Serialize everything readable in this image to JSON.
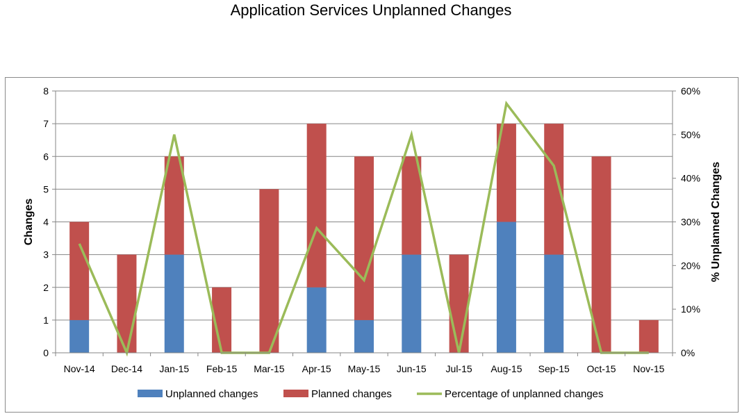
{
  "page": {
    "title": "Application Services Unplanned Changes"
  },
  "chart_data": {
    "type": "bar",
    "stacked": true,
    "title": "Application Services Unplanned Changes",
    "categories": [
      "Nov-14",
      "Dec-14",
      "Jan-15",
      "Feb-15",
      "Mar-15",
      "Apr-15",
      "May-15",
      "Jun-15",
      "Jul-15",
      "Aug-15",
      "Sep-15",
      "Oct-15",
      "Nov-15"
    ],
    "series": [
      {
        "name": "Unplanned changes",
        "type": "bar",
        "axis": "left",
        "color": "#4f81bd",
        "values": [
          1,
          0,
          3,
          0,
          0,
          2,
          1,
          3,
          0,
          4,
          3,
          0,
          0
        ]
      },
      {
        "name": "Planned changes",
        "type": "bar",
        "axis": "left",
        "color": "#c0504d",
        "values": [
          3,
          3,
          3,
          2,
          5,
          5,
          5,
          3,
          3,
          3,
          4,
          6,
          1
        ]
      },
      {
        "name": "Percentage of unplanned changes",
        "type": "line",
        "axis": "right",
        "color": "#9bbb59",
        "values": [
          25,
          0,
          50,
          0,
          0,
          28.57,
          16.67,
          50,
          0,
          57.14,
          42.86,
          0,
          0
        ]
      }
    ],
    "ylabel": "Changes",
    "y2label": "% Unplanned Changes",
    "ylim": [
      0,
      8
    ],
    "y2lim": [
      0,
      60
    ],
    "yticks": [
      "0",
      "1",
      "2",
      "3",
      "4",
      "5",
      "6",
      "7",
      "8"
    ],
    "y2ticks": [
      "0%",
      "10%",
      "20%",
      "30%",
      "40%",
      "50%",
      "60%"
    ],
    "grid": true,
    "legend_position": "bottom"
  }
}
